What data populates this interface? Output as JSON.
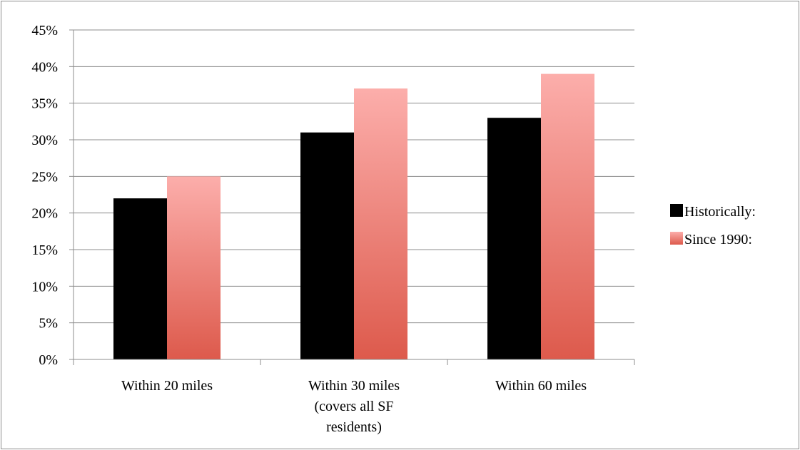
{
  "chart_data": {
    "type": "bar",
    "categories": [
      [
        "Within 20 miles"
      ],
      [
        "Within 30 miles",
        "(covers all SF",
        "residents)"
      ],
      [
        "Within 60 miles"
      ]
    ],
    "series": [
      {
        "name": "Historically:",
        "values": [
          22,
          31,
          33
        ],
        "color": "#000000"
      },
      {
        "name": "Since 1990:",
        "values": [
          25,
          37,
          39
        ],
        "color": "#f4a09c",
        "gradient": [
          "#fcaeab",
          "#dd5a4c"
        ]
      }
    ],
    "ylim": [
      0,
      45
    ],
    "yticks": [
      "0%",
      "5%",
      "10%",
      "15%",
      "20%",
      "25%",
      "30%",
      "35%",
      "40%",
      "45%"
    ],
    "grid": true,
    "legend": "right",
    "title": "",
    "xlabel": "",
    "ylabel": ""
  }
}
